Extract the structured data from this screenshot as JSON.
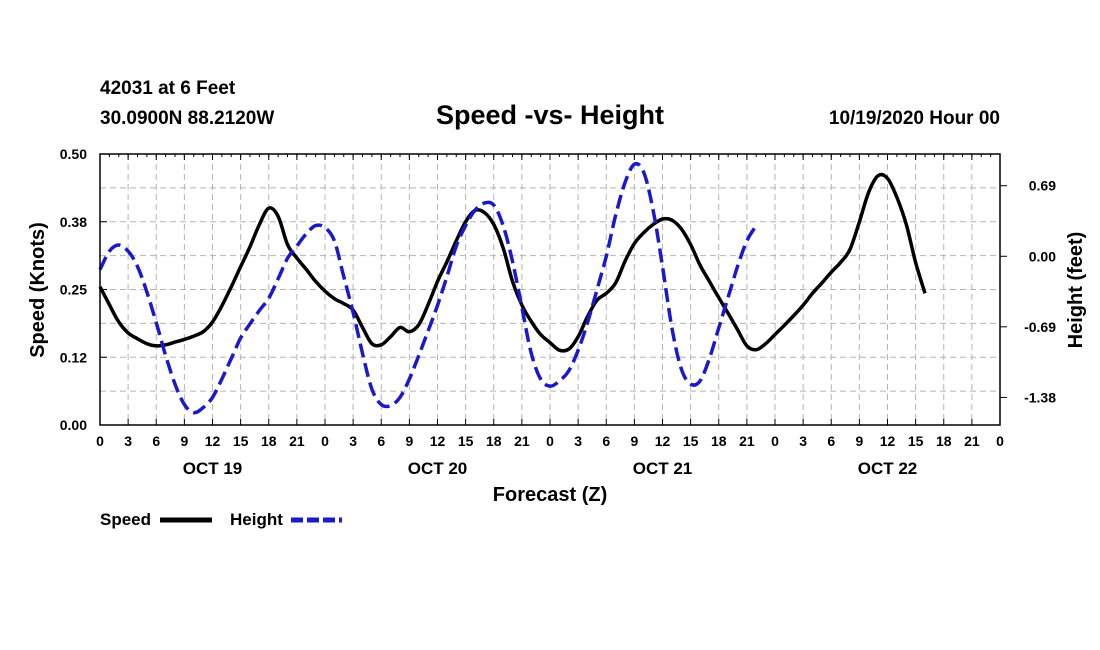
{
  "header": {
    "station": "42031 at 6 Feet",
    "location": "30.0900N 88.2120W",
    "title": "Speed -vs- Height",
    "run": "10/19/2020 Hour 00"
  },
  "chart_data": {
    "type": "line",
    "title": "Speed -vs- Height",
    "xlabel": "Forecast (Z)",
    "ylabel_left": "Speed (Knots)",
    "ylabel_right": "Height (feet)",
    "x_range": [
      0,
      96
    ],
    "x_tick_labels": [
      "0",
      "3",
      "6",
      "9",
      "12",
      "15",
      "18",
      "21",
      "0",
      "3",
      "6",
      "9",
      "12",
      "15",
      "18",
      "21",
      "0",
      "3",
      "6",
      "9",
      "12",
      "15",
      "18",
      "21",
      "0",
      "3",
      "6",
      "9",
      "12",
      "15",
      "18",
      "21",
      "0"
    ],
    "day_labels": [
      {
        "label": "OCT 19",
        "hour": 12
      },
      {
        "label": "OCT 20",
        "hour": 36
      },
      {
        "label": "OCT 21",
        "hour": 60
      },
      {
        "label": "OCT 22",
        "hour": 84
      }
    ],
    "y_left_range": [
      0,
      0.5
    ],
    "y_left_ticks": [
      "0.00",
      "0.12",
      "0.25",
      "0.38",
      "0.50"
    ],
    "y_right_range": [
      -1.65,
      1.0
    ],
    "y_right_ticks": [
      {
        "label": "0.69",
        "value": 0.69
      },
      {
        "label": "0.00",
        "value": 0.0
      },
      {
        "label": "-0.69",
        "value": -0.69
      },
      {
        "label": "-1.38",
        "value": -1.38
      }
    ],
    "grid": true,
    "legend_position": "bottom-left",
    "series": [
      {
        "name": "Speed",
        "axis": "left",
        "color": "#000000",
        "style": "solid",
        "points": [
          [
            0,
            0.255
          ],
          [
            1,
            0.222
          ],
          [
            2,
            0.19
          ],
          [
            3,
            0.17
          ],
          [
            4,
            0.159
          ],
          [
            5,
            0.15
          ],
          [
            6,
            0.146
          ],
          [
            7,
            0.148
          ],
          [
            8,
            0.153
          ],
          [
            9,
            0.158
          ],
          [
            10,
            0.164
          ],
          [
            11,
            0.172
          ],
          [
            12,
            0.19
          ],
          [
            13,
            0.22
          ],
          [
            14,
            0.255
          ],
          [
            15,
            0.292
          ],
          [
            16,
            0.329
          ],
          [
            17,
            0.37
          ],
          [
            18,
            0.4
          ],
          [
            19,
            0.385
          ],
          [
            20,
            0.333
          ],
          [
            21,
            0.308
          ],
          [
            22,
            0.287
          ],
          [
            23,
            0.265
          ],
          [
            24,
            0.247
          ],
          [
            25,
            0.233
          ],
          [
            26,
            0.224
          ],
          [
            27,
            0.212
          ],
          [
            28,
            0.18
          ],
          [
            29,
            0.15
          ],
          [
            30,
            0.148
          ],
          [
            31,
            0.163
          ],
          [
            32,
            0.18
          ],
          [
            33,
            0.172
          ],
          [
            34,
            0.185
          ],
          [
            35,
            0.222
          ],
          [
            36,
            0.265
          ],
          [
            37,
            0.301
          ],
          [
            38,
            0.34
          ],
          [
            39,
            0.375
          ],
          [
            40,
            0.396
          ],
          [
            41,
            0.392
          ],
          [
            42,
            0.37
          ],
          [
            43,
            0.327
          ],
          [
            44,
            0.265
          ],
          [
            45,
            0.221
          ],
          [
            46,
            0.191
          ],
          [
            47,
            0.167
          ],
          [
            48,
            0.152
          ],
          [
            49,
            0.138
          ],
          [
            50,
            0.14
          ],
          [
            51,
            0.163
          ],
          [
            52,
            0.2
          ],
          [
            53,
            0.23
          ],
          [
            54,
            0.243
          ],
          [
            55,
            0.262
          ],
          [
            56,
            0.302
          ],
          [
            57,
            0.335
          ],
          [
            58,
            0.355
          ],
          [
            59,
            0.37
          ],
          [
            60,
            0.38
          ],
          [
            61,
            0.378
          ],
          [
            62,
            0.362
          ],
          [
            63,
            0.333
          ],
          [
            64,
            0.295
          ],
          [
            65,
            0.265
          ],
          [
            66,
            0.235
          ],
          [
            67,
            0.206
          ],
          [
            68,
            0.176
          ],
          [
            69,
            0.146
          ],
          [
            70,
            0.139
          ],
          [
            71,
            0.15
          ],
          [
            72,
            0.167
          ],
          [
            73,
            0.184
          ],
          [
            74,
            0.202
          ],
          [
            75,
            0.221
          ],
          [
            76,
            0.243
          ],
          [
            77,
            0.262
          ],
          [
            78,
            0.282
          ],
          [
            79,
            0.3
          ],
          [
            80,
            0.324
          ],
          [
            81,
            0.375
          ],
          [
            82,
            0.43
          ],
          [
            83,
            0.46
          ],
          [
            84,
            0.455
          ],
          [
            85,
            0.42
          ],
          [
            86,
            0.37
          ],
          [
            87,
            0.3
          ],
          [
            88,
            0.243
          ]
        ]
      },
      {
        "name": "Height",
        "axis": "right",
        "color": "#1a1acc",
        "style": "dashed",
        "points": [
          [
            0,
            -0.13
          ],
          [
            1,
            0.05
          ],
          [
            2,
            0.11
          ],
          [
            3,
            0.05
          ],
          [
            4,
            -0.1
          ],
          [
            5,
            -0.35
          ],
          [
            6,
            -0.65
          ],
          [
            7,
            -0.97
          ],
          [
            8,
            -1.25
          ],
          [
            9,
            -1.45
          ],
          [
            10,
            -1.53
          ],
          [
            11,
            -1.48
          ],
          [
            12,
            -1.38
          ],
          [
            13,
            -1.2
          ],
          [
            14,
            -1.0
          ],
          [
            15,
            -0.8
          ],
          [
            16,
            -0.66
          ],
          [
            17,
            -0.53
          ],
          [
            18,
            -0.41
          ],
          [
            19,
            -0.22
          ],
          [
            20,
            -0.02
          ],
          [
            21,
            0.1
          ],
          [
            22,
            0.22
          ],
          [
            23,
            0.3
          ],
          [
            24,
            0.28
          ],
          [
            25,
            0.15
          ],
          [
            26,
            -0.2
          ],
          [
            27,
            -0.55
          ],
          [
            28,
            -0.95
          ],
          [
            29,
            -1.3
          ],
          [
            30,
            -1.45
          ],
          [
            31,
            -1.46
          ],
          [
            32,
            -1.38
          ],
          [
            33,
            -1.2
          ],
          [
            34,
            -0.97
          ],
          [
            35,
            -0.73
          ],
          [
            36,
            -0.48
          ],
          [
            37,
            -0.2
          ],
          [
            38,
            0.1
          ],
          [
            39,
            0.3
          ],
          [
            40,
            0.45
          ],
          [
            41,
            0.52
          ],
          [
            42,
            0.5
          ],
          [
            43,
            0.3
          ],
          [
            44,
            -0.05
          ],
          [
            45,
            -0.5
          ],
          [
            46,
            -0.95
          ],
          [
            47,
            -1.2
          ],
          [
            48,
            -1.27
          ],
          [
            49,
            -1.22
          ],
          [
            50,
            -1.12
          ],
          [
            51,
            -0.92
          ],
          [
            52,
            -0.65
          ],
          [
            53,
            -0.33
          ],
          [
            54,
            0.0
          ],
          [
            55,
            0.4
          ],
          [
            56,
            0.72
          ],
          [
            57,
            0.9
          ],
          [
            58,
            0.82
          ],
          [
            59,
            0.45
          ],
          [
            60,
            -0.1
          ],
          [
            61,
            -0.7
          ],
          [
            62,
            -1.1
          ],
          [
            63,
            -1.25
          ],
          [
            64,
            -1.22
          ],
          [
            65,
            -1.0
          ],
          [
            66,
            -0.7
          ],
          [
            67,
            -0.4
          ],
          [
            68,
            -0.1
          ],
          [
            69,
            0.15
          ],
          [
            70,
            0.3
          ]
        ]
      }
    ]
  },
  "legend": {
    "speed_label": "Speed",
    "height_label": "Height"
  }
}
